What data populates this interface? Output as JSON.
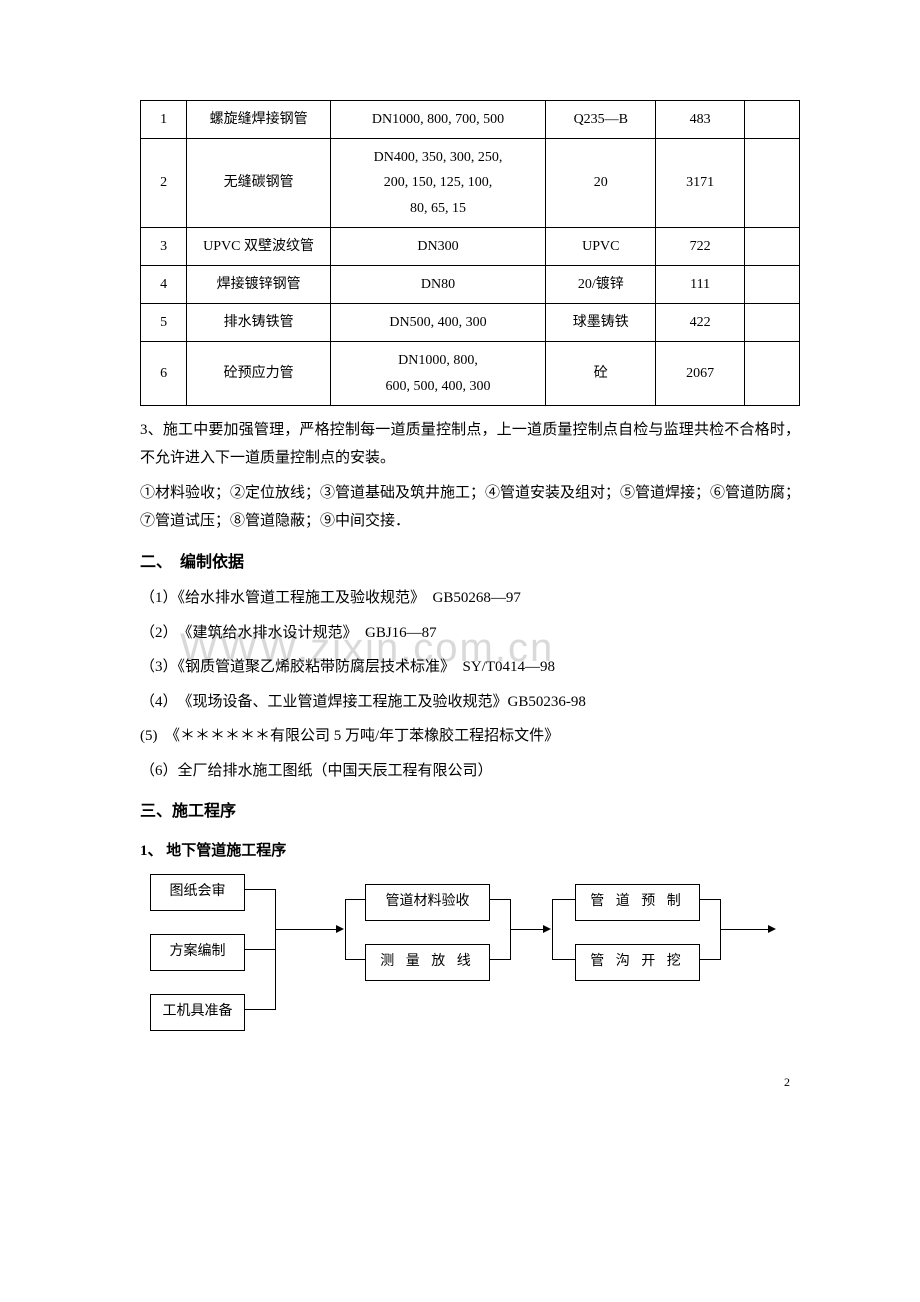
{
  "watermark": "WWW.zixin.com.cn",
  "table": {
    "rows": [
      {
        "num": "1",
        "name": "螺旋缝焊接钢管",
        "spec": "DN1000, 800, 700, 500",
        "mat": "Q235—B",
        "qty": "483",
        "note": ""
      },
      {
        "num": "2",
        "name": "无缝碳钢管",
        "spec": "DN400, 350, 300, 250,\n200, 150, 125, 100,\n80, 65, 15",
        "mat": "20",
        "qty": "3171",
        "note": ""
      },
      {
        "num": "3",
        "name": "UPVC 双壁波纹管",
        "spec": "DN300",
        "mat": "UPVC",
        "qty": "722",
        "note": ""
      },
      {
        "num": "4",
        "name": "焊接镀锌钢管",
        "spec": "DN80",
        "mat": "20/镀锌",
        "qty": "111",
        "note": ""
      },
      {
        "num": "5",
        "name": "排水铸铁管",
        "spec": "DN500, 400, 300",
        "mat": "球墨铸铁",
        "qty": "422",
        "note": ""
      },
      {
        "num": "6",
        "name": "砼预应力管",
        "spec": "DN1000, 800,\n600, 500, 400, 300",
        "mat": "砼",
        "qty": "2067",
        "note": ""
      }
    ]
  },
  "para1": "3、施工中要加强管理，严格控制每一道质量控制点，上一道质量控制点自检与监理共检不合格时，不允许进入下一道质量控制点的安装。",
  "para2": "①材料验收；②定位放线；③管道基础及筑井施工；④管道安装及组对；⑤管道焊接；⑥管道防腐；⑦管道试压；⑧管道隐蔽；⑨中间交接．",
  "heading2": "二、　编制依据",
  "refs": [
    "（1）《给水排水管道工程施工及验收规范》　GB50268—97",
    "（2）　《建筑给水排水设计规范》　GBJ16—87",
    "（3）《钢质管道聚乙烯胶粘带防腐层技术标准》　SY/T0414—98",
    "（4）　《现场设备、工业管道焊接工程施工及验收规范》GB50236-98",
    "(5)　《＊＊＊＊＊＊有限公司 5 万吨/年丁苯橡胶工程招标文件》",
    "（6）全厂给排水施工图纸（中国天辰工程有限公司）"
  ],
  "heading3": "三、施工程序",
  "sub1": "1、 地下管道施工程序",
  "flow": {
    "b1": "图纸会审",
    "b2": "方案编制",
    "b3": "工机具准备",
    "b4": "管道材料验收",
    "b5": "测 量 放 线",
    "b6": "管 道 预 制",
    "b7": "管 沟 开 挖"
  },
  "colors": {
    "text": "#000000",
    "border": "#000000",
    "bg": "#ffffff",
    "watermark": "#d9d9d9"
  },
  "pagenum": "2"
}
